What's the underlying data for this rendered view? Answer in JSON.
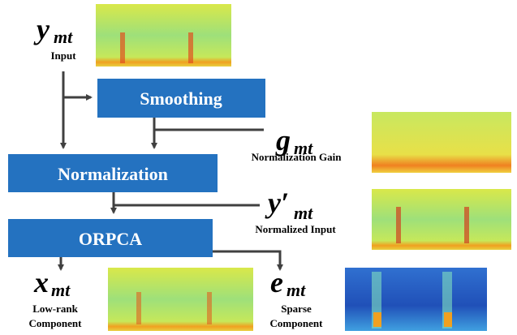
{
  "blocks": [
    "Smoothing",
    "Normalization",
    "ORPCA"
  ],
  "signals": [
    {
      "symbol": "y",
      "subscript": "mt",
      "caption": [
        "Input"
      ]
    },
    {
      "symbol": "g",
      "subscript": "mt",
      "caption": [
        "Normalization Gain"
      ]
    },
    {
      "symbol": "y′",
      "subscript": "mt",
      "caption": [
        "Normalized Input"
      ]
    },
    {
      "symbol": "x",
      "subscript": "mt",
      "caption": [
        "Low-rank",
        "Component"
      ]
    },
    {
      "symbol": "e",
      "subscript": "mt",
      "caption": [
        "Sparse",
        "Component"
      ]
    }
  ]
}
